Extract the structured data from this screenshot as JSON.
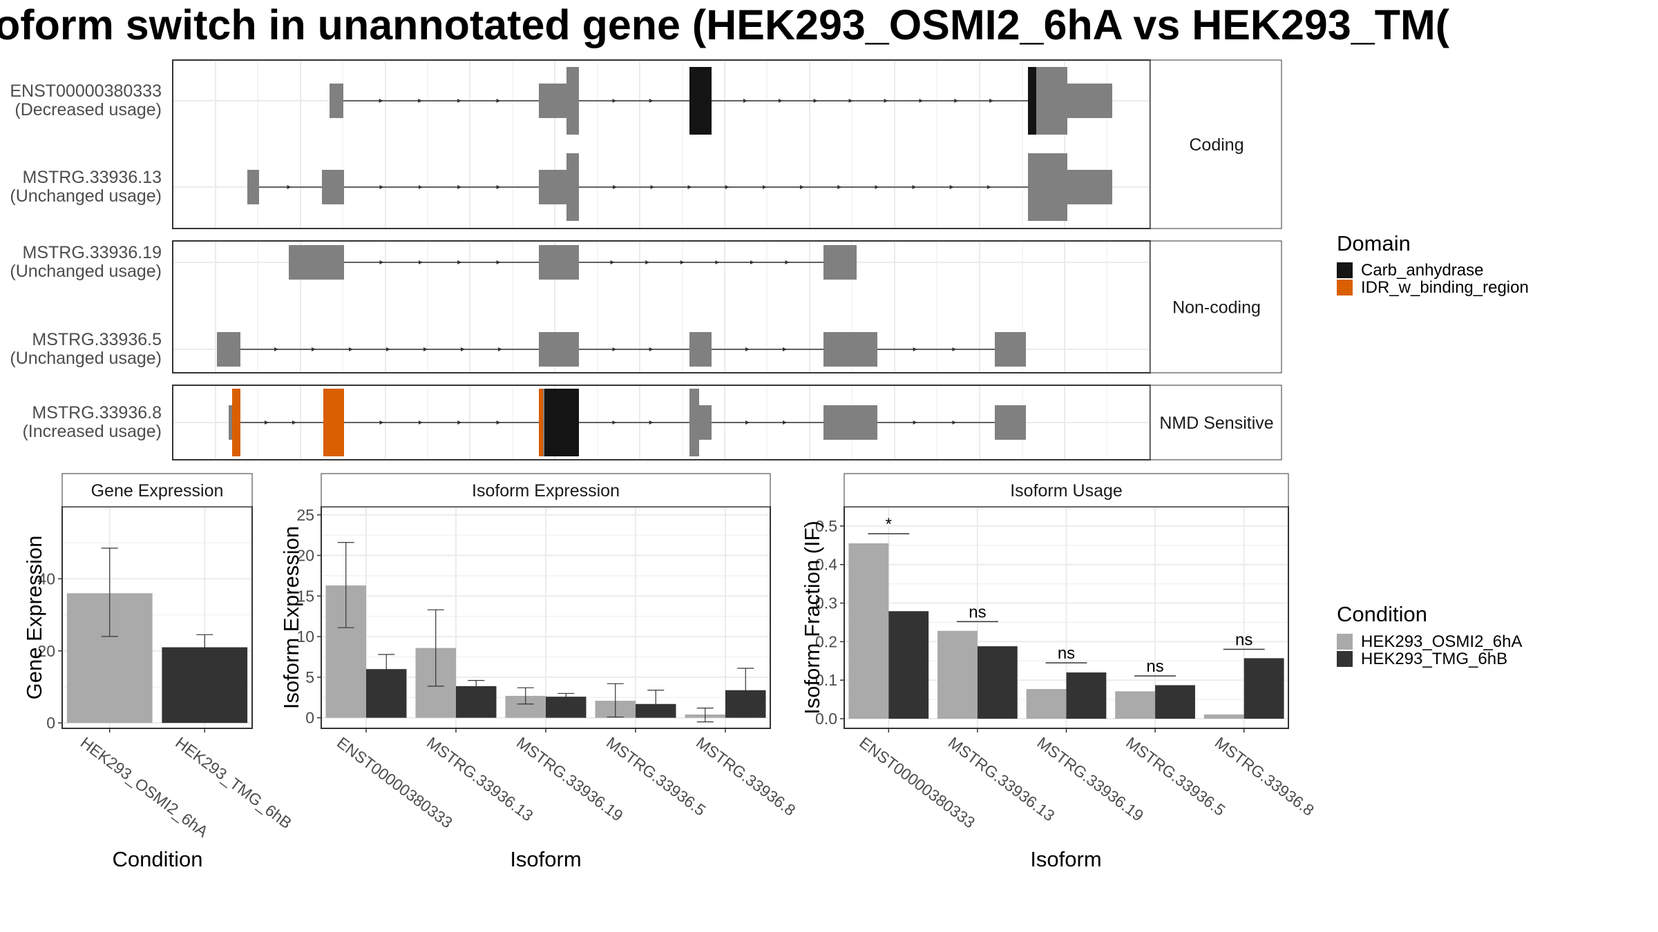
{
  "figure": {
    "title": "oform switch in unannotated gene (HEK293_OSMI2_6hA vs HEK293_TM("
  },
  "colors": {
    "exon": "#808080",
    "carb_anhydrase": "#141414",
    "idr_binding": "#d95f02",
    "condition_1": "#aaaaaa",
    "condition_2": "#333333"
  },
  "transcripts": {
    "groups": [
      {
        "label": "Coding",
        "isoforms": [
          {
            "name": "ENST00000380333",
            "usage": "(Decreased usage)",
            "exons": [
              [
                477,
                497,
                "thin"
              ],
              [
                780,
                820,
                "thin"
              ],
              [
                820,
                838,
                "full"
              ],
              [
                998,
                1030,
                "full"
              ],
              [
                1488,
                1500,
                "full"
              ],
              [
                1500,
                1545,
                "full"
              ],
              [
                1545,
                1610,
                "thin"
              ]
            ],
            "domains": [
              [
                998,
                1030,
                "Carb_anhydrase"
              ],
              [
                1488,
                1500,
                "Carb_anhydrase"
              ]
            ]
          },
          {
            "name": "MSTRG.33936.13",
            "usage": "(Unchanged usage)",
            "exons": [
              [
                358,
                375,
                "thin"
              ],
              [
                466,
                498,
                "thin"
              ],
              [
                780,
                820,
                "thin"
              ],
              [
                820,
                838,
                "full"
              ],
              [
                1488,
                1545,
                "full"
              ],
              [
                1545,
                1610,
                "thin"
              ]
            ],
            "domains": []
          }
        ]
      },
      {
        "label": "Non-coding",
        "isoforms": [
          {
            "name": "MSTRG.33936.19",
            "usage": "(Unchanged usage)",
            "exons": [
              [
                418,
                498,
                "thin"
              ],
              [
                780,
                838,
                "thin"
              ],
              [
                1192,
                1240,
                "thin"
              ]
            ],
            "domains": []
          },
          {
            "name": "MSTRG.33936.5",
            "usage": "(Unchanged usage)",
            "exons": [
              [
                314,
                348,
                "thin"
              ],
              [
                780,
                838,
                "thin"
              ],
              [
                998,
                1030,
                "thin"
              ],
              [
                1192,
                1270,
                "thin"
              ],
              [
                1440,
                1485,
                "thin"
              ]
            ],
            "domains": []
          }
        ]
      },
      {
        "label": "NMD Sensitive",
        "isoforms": [
          {
            "name": "MSTRG.33936.8",
            "usage": "(Increased usage)",
            "exons": [
              [
                331,
                336,
                "thin"
              ],
              [
                336,
                348,
                "full"
              ],
              [
                468,
                498,
                "full"
              ],
              [
                780,
                838,
                "full"
              ],
              [
                998,
                1012,
                "full"
              ],
              [
                1012,
                1030,
                "thin"
              ],
              [
                1192,
                1270,
                "thin"
              ],
              [
                1440,
                1485,
                "thin"
              ]
            ],
            "domains": [
              [
                336,
                348,
                "IDR_w_binding_region"
              ],
              [
                468,
                498,
                "IDR_w_binding_region"
              ],
              [
                780,
                786,
                "IDR_w_binding_region"
              ],
              [
                788,
                838,
                "Carb_anhydrase"
              ]
            ]
          }
        ]
      }
    ]
  },
  "domain_legend": {
    "title": "Domain",
    "items": [
      {
        "label": "Carb_anhydrase",
        "color": "#141414"
      },
      {
        "label": "IDR_w_binding_region",
        "color": "#d95f02"
      }
    ]
  },
  "condition_legend": {
    "title": "Condition",
    "items": [
      {
        "label": "HEK293_OSMI2_6hA",
        "color": "#aaaaaa"
      },
      {
        "label": "HEK293_TMG_6hB",
        "color": "#333333"
      }
    ]
  },
  "chart_data": [
    {
      "type": "bar",
      "panel": "Gene Expression",
      "xlabel": "Condition",
      "ylabel": "Gene Expression",
      "ylim": [
        -1.5,
        60
      ],
      "yticks": [
        0,
        20,
        40
      ],
      "categories": [
        "HEK293_OSMI2_6hA",
        "HEK293_TMG_6hB"
      ],
      "series": [
        {
          "name": "HEK293_OSMI2_6hA",
          "values": [
            36,
            null
          ],
          "err_low": [
            24,
            null
          ],
          "err_high": [
            48.5,
            null
          ]
        },
        {
          "name": "HEK293_TMG_6hB",
          "values": [
            null,
            21
          ],
          "err_low": [
            null,
            18
          ],
          "err_high": [
            null,
            24.5
          ]
        }
      ]
    },
    {
      "type": "bar",
      "panel": "Isoform Expression",
      "xlabel": "Isoform",
      "ylabel": "Isoform Expression",
      "ylim": [
        -1.3,
        26
      ],
      "yticks": [
        0,
        5,
        10,
        15,
        20,
        25
      ],
      "categories": [
        "ENST00000380333",
        "MSTRG.33936.13",
        "MSTRG.33936.19",
        "MSTRG.33936.5",
        "MSTRG.33936.8"
      ],
      "series": [
        {
          "name": "HEK293_OSMI2_6hA",
          "values": [
            16.3,
            8.6,
            2.7,
            2.1,
            0.4
          ],
          "err_low": [
            11.1,
            3.9,
            1.7,
            0.1,
            -0.5
          ],
          "err_high": [
            21.6,
            13.3,
            3.7,
            4.2,
            1.2
          ]
        },
        {
          "name": "HEK293_TMG_6hB",
          "values": [
            6.0,
            3.9,
            2.6,
            1.7,
            3.4
          ],
          "err_low": [
            4.2,
            3.2,
            2.2,
            0.1,
            0.7
          ],
          "err_high": [
            7.8,
            4.6,
            3.0,
            3.4,
            6.1
          ]
        }
      ]
    },
    {
      "type": "bar",
      "panel": "Isoform Usage",
      "xlabel": "Isoform",
      "ylabel": "Isoform Fraction (IF)",
      "ylim": [
        -0.025,
        0.55
      ],
      "yticks": [
        0.0,
        0.1,
        0.2,
        0.3,
        0.4,
        0.5
      ],
      "ytick_labels": [
        "0.0",
        "0.1",
        "0.2",
        "0.3",
        "0.4",
        "0.5"
      ],
      "categories": [
        "ENST00000380333",
        "MSTRG.33936.13",
        "MSTRG.33936.19",
        "MSTRG.33936.5",
        "MSTRG.33936.8"
      ],
      "series": [
        {
          "name": "HEK293_OSMI2_6hA",
          "values": [
            0.455,
            0.228,
            0.077,
            0.071,
            0.011
          ]
        },
        {
          "name": "HEK293_TMG_6hB",
          "values": [
            0.279,
            0.188,
            0.12,
            0.087,
            0.157
          ]
        }
      ],
      "significance": [
        {
          "label": "*",
          "y": 0.48
        },
        {
          "label": "ns",
          "y": 0.252
        },
        {
          "label": "ns",
          "y": 0.145
        },
        {
          "label": "ns",
          "y": 0.111
        },
        {
          "label": "ns",
          "y": 0.18
        }
      ]
    }
  ]
}
